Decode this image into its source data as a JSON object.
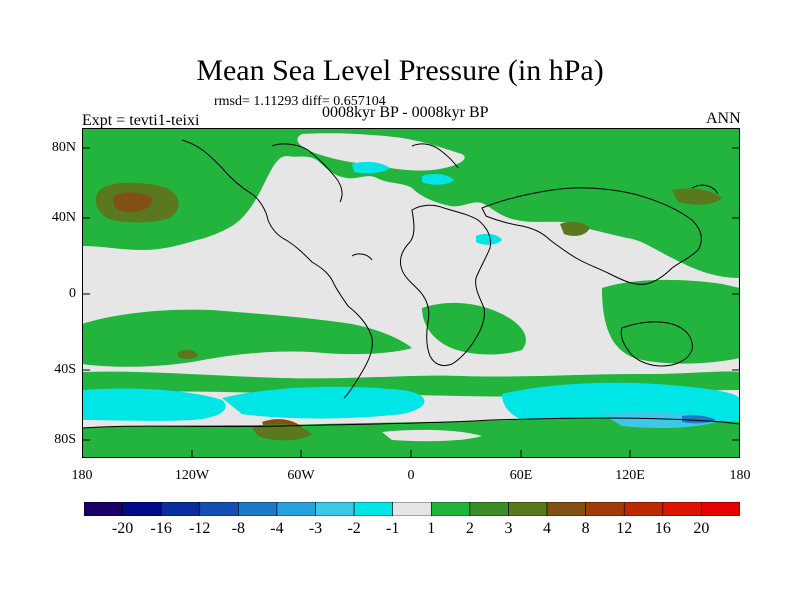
{
  "title": "Mean Sea Level Pressure (in hPa)",
  "stats": "rmsd= 1.11293 diff= 0.657104",
  "period": "0008kyr BP - 0008kyr BP",
  "experiment": "Expt = tevti1-teixi",
  "season": "ANN",
  "lat_labels": [
    "80N",
    "40N",
    "0",
    "40S",
    "80S"
  ],
  "lon_labels": [
    "180",
    "120W",
    "60W",
    "0",
    "60E",
    "120E",
    "180"
  ],
  "colorbar": {
    "labels": [
      "-20",
      "-16",
      "-12",
      "-8",
      "-4",
      "-3",
      "-2",
      "-1",
      "1",
      "2",
      "3",
      "4",
      "8",
      "12",
      "16",
      "20"
    ],
    "colors": [
      "#1a0066",
      "#000a8c",
      "#0a2e9e",
      "#1450b4",
      "#1e78c8",
      "#28a0dc",
      "#3cc8e6",
      "#00e6e6",
      "#e6e6e6",
      "#22b43c",
      "#3c8c28",
      "#5a781e",
      "#825014",
      "#a03c0a",
      "#be2800",
      "#dc1400",
      "#e60000"
    ]
  },
  "map_colors": {
    "neutral": "#e6e6e6",
    "green": "#22b43c",
    "darkgreen": "#5a781e",
    "brown": "#825014",
    "cyan": "#00e6e6",
    "lightblue": "#3cc8e6",
    "blue": "#1e78c8"
  }
}
